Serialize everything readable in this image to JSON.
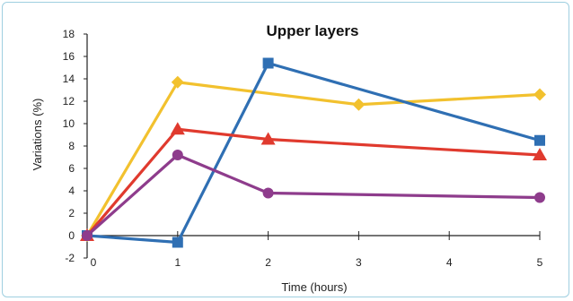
{
  "chart_data": {
    "type": "line",
    "title": "Upper layers",
    "xlabel": "Time (hours)",
    "ylabel": "Variations (%)",
    "x": [
      0,
      1,
      2,
      3,
      5
    ],
    "x_ticks": [
      0,
      1,
      2,
      3,
      4,
      5
    ],
    "y_ticks": [
      -2,
      0,
      2,
      4,
      6,
      8,
      10,
      12,
      14,
      16,
      18
    ],
    "xlim": [
      0,
      5
    ],
    "ylim": [
      -2,
      18
    ],
    "grid": false,
    "legend": "none",
    "series": [
      {
        "color": "#f2c12e",
        "marker": "diamond",
        "x": [
          0,
          1,
          3,
          5
        ],
        "values": [
          0,
          13.7,
          11.7,
          12.6
        ]
      },
      {
        "color": "#2f6fb3",
        "marker": "square",
        "x": [
          0,
          1,
          2,
          5
        ],
        "values": [
          0,
          -0.6,
          15.4,
          8.5
        ]
      },
      {
        "color": "#e03a2e",
        "marker": "triangle",
        "x": [
          0,
          1,
          2,
          5
        ],
        "values": [
          0,
          9.5,
          8.6,
          7.2
        ]
      },
      {
        "color": "#8e3c8c",
        "marker": "circle",
        "x": [
          0,
          1,
          2,
          5
        ],
        "values": [
          0,
          7.2,
          3.8,
          3.4
        ]
      }
    ]
  }
}
